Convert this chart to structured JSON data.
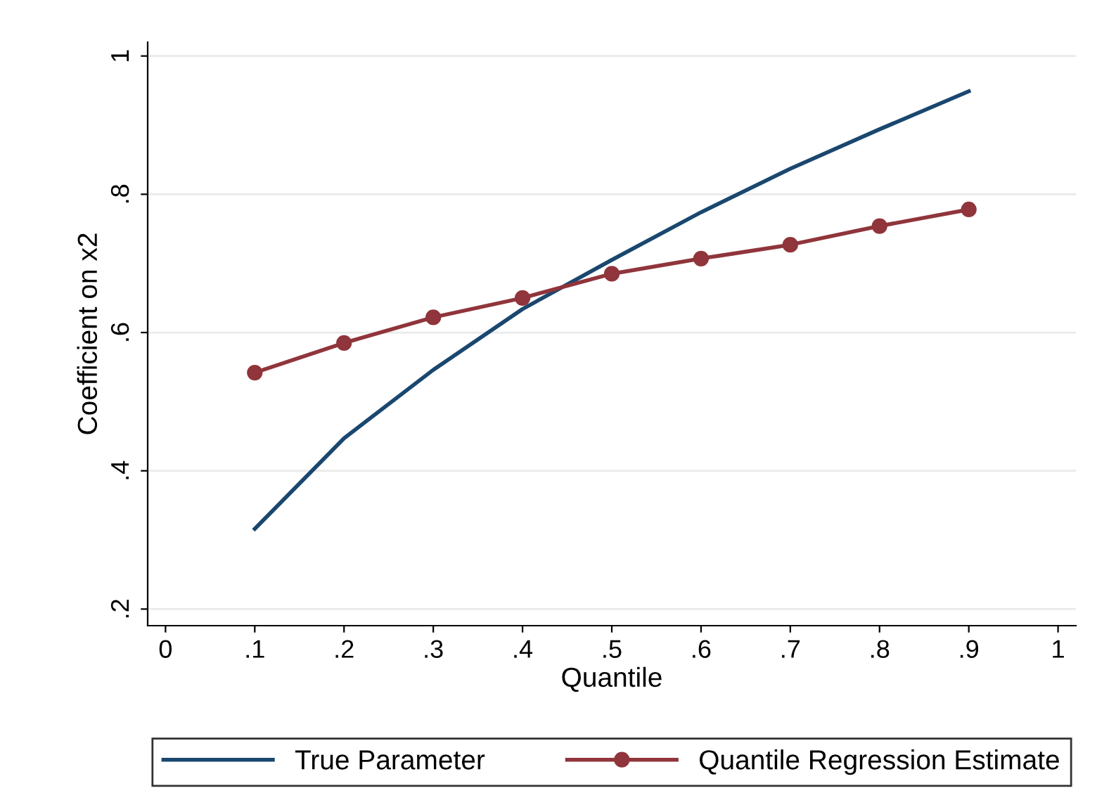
{
  "chart_data": {
    "type": "line",
    "xlabel": "Quantile",
    "ylabel": "Coefficient on x2",
    "x": [
      0.1,
      0.2,
      0.3,
      0.4,
      0.5,
      0.6,
      0.7,
      0.8,
      0.9
    ],
    "series": [
      {
        "name": "True Parameter",
        "color": "#1a476f",
        "marker": "none",
        "values": [
          0.316,
          0.447,
          0.546,
          0.634,
          0.705,
          0.774,
          0.837,
          0.894,
          0.949
        ]
      },
      {
        "name": "Quantile Regression Estimate",
        "color": "#90353b",
        "marker": "circle",
        "values": [
          0.542,
          0.585,
          0.622,
          0.65,
          0.685,
          0.707,
          0.727,
          0.754,
          0.778
        ]
      }
    ],
    "xlim": [
      -0.02,
      1.02
    ],
    "ylim": [
      0.176,
      1.02
    ],
    "xticks": [
      0,
      {
        "value": 0.1,
        "label": ".1"
      },
      {
        "value": 0.2,
        "label": ".2"
      },
      {
        "value": 0.3,
        "label": ".3"
      },
      {
        "value": 0.4,
        "label": ".4"
      },
      {
        "value": 0.5,
        "label": ".5"
      },
      {
        "value": 0.6,
        "label": ".6"
      },
      {
        "value": 0.7,
        "label": ".7"
      },
      {
        "value": 0.8,
        "label": ".8"
      },
      {
        "value": 0.9,
        "label": ".9"
      },
      1
    ],
    "yticks": [
      {
        "value": 0.2,
        "label": ".2"
      },
      {
        "value": 0.4,
        "label": ".4"
      },
      {
        "value": 0.6,
        "label": ".6"
      },
      {
        "value": 0.8,
        "label": ".8"
      },
      1
    ],
    "grid": "y",
    "legend": "bottom"
  }
}
